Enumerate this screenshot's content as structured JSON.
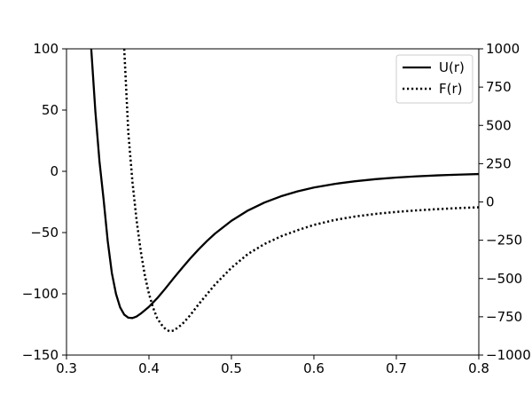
{
  "chart_data": {
    "type": "line",
    "title": "",
    "xlabel": "",
    "ylabel_left": "",
    "ylabel_right": "",
    "xlim": [
      0.3,
      0.8
    ],
    "ylim_left": [
      -150,
      100
    ],
    "ylim_right": [
      -1000,
      1000
    ],
    "x_ticks": [
      0.3,
      0.4,
      0.5,
      0.6,
      0.7,
      0.8
    ],
    "x_tick_labels": [
      "0.3",
      "0.4",
      "0.5",
      "0.6",
      "0.7",
      "0.8"
    ],
    "y_left_ticks": [
      -150,
      -100,
      -50,
      0,
      50,
      100
    ],
    "y_left_tick_labels": [
      "−150",
      "−100",
      "−50",
      "0",
      "50",
      "100"
    ],
    "y_right_ticks": [
      -1000,
      -750,
      -500,
      -250,
      0,
      250,
      500,
      750,
      1000
    ],
    "y_right_tick_labels": [
      "−1000",
      "−750",
      "−500",
      "−250",
      "0",
      "250",
      "500",
      "750",
      "1000"
    ],
    "grid": false,
    "legend_placement": "top-right",
    "colors": {
      "series_line": "#000000",
      "axes": "#000000",
      "background": "#ffffff"
    },
    "series": [
      {
        "name": "U(r)",
        "axis": "left",
        "style": "solid",
        "x": [
          0.33,
          0.335,
          0.34,
          0.345,
          0.35,
          0.355,
          0.36,
          0.365,
          0.37,
          0.375,
          0.38,
          0.385,
          0.39,
          0.4,
          0.41,
          0.42,
          0.43,
          0.44,
          0.45,
          0.46,
          0.47,
          0.48,
          0.5,
          0.52,
          0.54,
          0.56,
          0.58,
          0.6,
          0.625,
          0.65,
          0.675,
          0.7,
          0.725,
          0.75,
          0.775,
          0.8
        ],
        "values": [
          100,
          49,
          8,
          -23,
          -57,
          -83,
          -100,
          -111,
          -117,
          -119.5,
          -119.8,
          -118.5,
          -116.2,
          -110.6,
          -103.6,
          -95.6,
          -87.2,
          -79.1,
          -71.2,
          -63.9,
          -57.1,
          -50.9,
          -40.4,
          -32.0,
          -25.5,
          -20.4,
          -16.4,
          -13.2,
          -10.3,
          -8.1,
          -6.4,
          -5.1,
          -4.1,
          -3.3,
          -2.7,
          -2.2
        ]
      },
      {
        "name": "F(r)",
        "axis": "right",
        "style": "dotted",
        "x": [
          0.37,
          0.375,
          0.38,
          0.385,
          0.39,
          0.395,
          0.4,
          0.405,
          0.41,
          0.415,
          0.42,
          0.425,
          0.43,
          0.44,
          0.45,
          0.46,
          0.48,
          0.5,
          0.52,
          0.54,
          0.56,
          0.58,
          0.6,
          0.625,
          0.65,
          0.675,
          0.7,
          0.725,
          0.75,
          0.775,
          0.8
        ],
        "values": [
          1000,
          450,
          130,
          -120,
          -320,
          -480,
          -600,
          -690,
          -760,
          -800,
          -830,
          -845,
          -840,
          -800,
          -740,
          -670,
          -540,
          -430,
          -340,
          -275,
          -225,
          -185,
          -150,
          -118,
          -95,
          -78,
          -65,
          -55,
          -47,
          -40,
          -35
        ]
      }
    ]
  }
}
